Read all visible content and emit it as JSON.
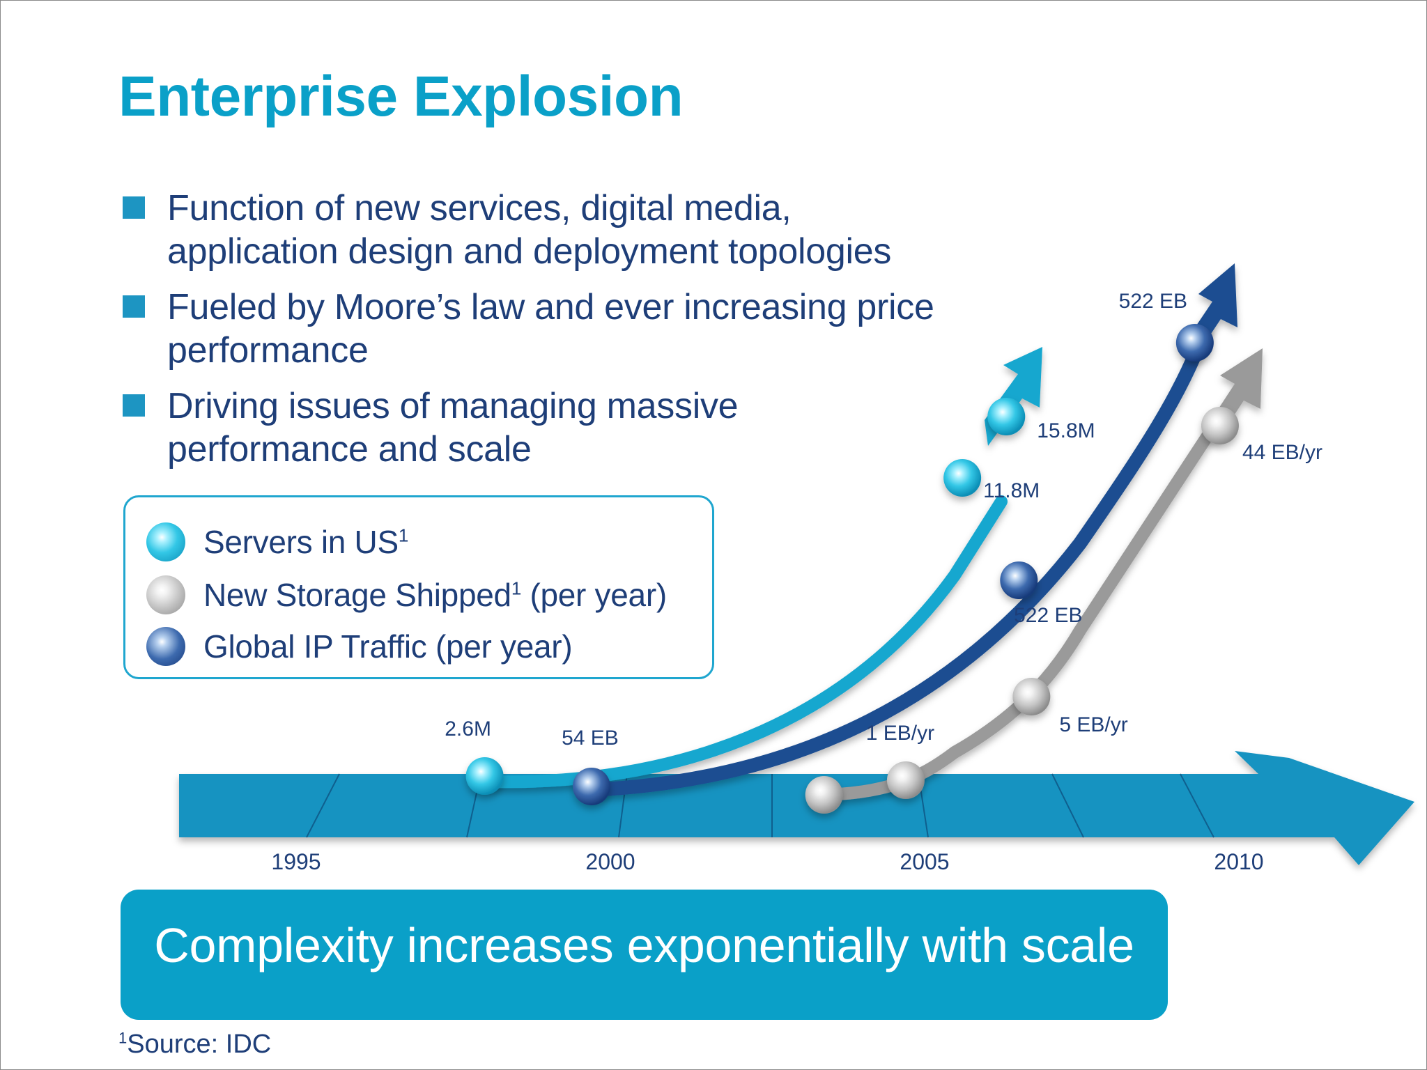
{
  "slide": {
    "title": "Enterprise Explosion",
    "bullets": [
      "Function of new services, digital media, application design and deployment topologies",
      "Fueled by Moore’s law and ever increasing price performance",
      "Driving issues of managing massive performance and scale"
    ],
    "banner": "Complexity increases exponentially with scale",
    "footnote": {
      "marker": "1",
      "text": "Source: IDC"
    }
  },
  "legend": [
    {
      "label": "Servers in US",
      "sup": "1",
      "suffix": "",
      "color": "cyan"
    },
    {
      "label": "New Storage Shipped",
      "sup": "1",
      "suffix": " (per year)",
      "color": "gray"
    },
    {
      "label": "Global IP Traffic (per year)",
      "sup": "",
      "suffix": "",
      "color": "navy"
    }
  ],
  "colors": {
    "title": "#0aa0c8",
    "text": "#1e3e78",
    "timeline": "#1593c1",
    "servers": "#13a7cf",
    "ip_traffic": "#1a4d91",
    "storage": "#9a9a9a"
  },
  "chart_data": {
    "type": "line",
    "x_ticks": [
      "1995",
      "2000",
      "2005",
      "2010"
    ],
    "series": [
      {
        "name": "Servers in US",
        "color": "cyan",
        "points": [
          {
            "x": 1998.0,
            "label": "2.6M"
          },
          {
            "x": 2005.6,
            "label": "11.8M"
          },
          {
            "x": 2006.3,
            "label": "15.8M"
          }
        ]
      },
      {
        "name": "Global IP Traffic (per year)",
        "color": "navy",
        "points": [
          {
            "x": 1999.7,
            "label": "54 EB"
          },
          {
            "x": 2006.5,
            "label": "522 EB"
          },
          {
            "x": 2009.3,
            "label": "522 EB"
          }
        ]
      },
      {
        "name": "New Storage Shipped (per year)",
        "color": "gray",
        "points": [
          {
            "x": 2003.4,
            "label": ""
          },
          {
            "x": 2004.7,
            "label": "1 EB/yr"
          },
          {
            "x": 2006.7,
            "label": "5 EB/yr"
          },
          {
            "x": 2009.7,
            "label": "44 EB/yr"
          }
        ]
      }
    ]
  }
}
